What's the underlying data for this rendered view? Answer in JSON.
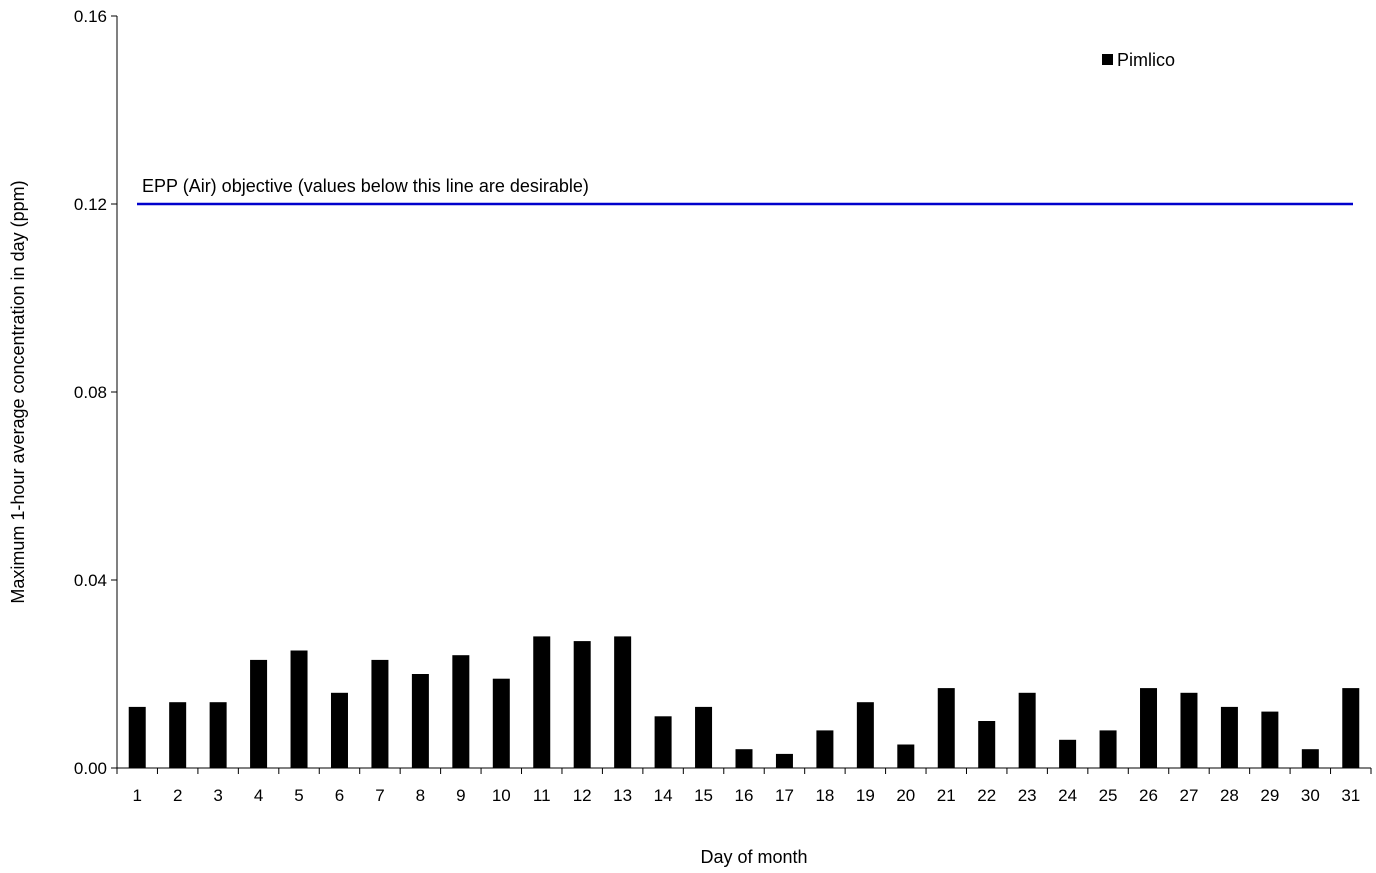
{
  "chart_data": {
    "type": "bar",
    "title": "",
    "xlabel": "Day of month",
    "ylabel": "Maximum 1-hour average concentration in day (ppm)",
    "ylim": [
      0,
      0.16
    ],
    "yticks": [
      "0.00",
      "0.04",
      "0.08",
      "0.12",
      "0.16"
    ],
    "categories": [
      "1",
      "2",
      "3",
      "4",
      "5",
      "6",
      "7",
      "8",
      "9",
      "10",
      "11",
      "12",
      "13",
      "14",
      "15",
      "16",
      "17",
      "18",
      "19",
      "20",
      "21",
      "22",
      "23",
      "24",
      "25",
      "26",
      "27",
      "28",
      "29",
      "30",
      "31"
    ],
    "series": [
      {
        "name": "Pimlico",
        "color": "#000000",
        "values": [
          0.013,
          0.014,
          0.014,
          0.023,
          0.025,
          0.016,
          0.023,
          0.02,
          0.024,
          0.019,
          0.028,
          0.027,
          0.028,
          0.011,
          0.013,
          0.004,
          0.003,
          0.008,
          0.014,
          0.005,
          0.017,
          0.01,
          0.016,
          0.006,
          0.008,
          0.017,
          0.016,
          0.013,
          0.012,
          0.004,
          0.017
        ]
      }
    ],
    "objective": {
      "value": 0.12,
      "label": "EPP (Air) objective (values below this line are desirable)",
      "color": "#0000cc"
    },
    "legend": {
      "placement": "top-right",
      "label": "Pimlico"
    },
    "grid": false
  }
}
